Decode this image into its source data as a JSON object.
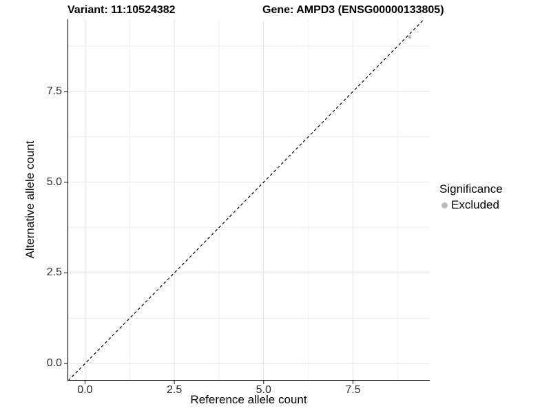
{
  "chart_data": {
    "type": "scatter",
    "title_left": "Variant: 11:10524382",
    "title_right": "Gene: AMPD3 (ENSG00000133805)",
    "xlabel": "Reference allele count",
    "ylabel": "Alternative allele count",
    "xlim": [
      -0.49,
      9.65
    ],
    "ylim": [
      -0.47,
      9.49
    ],
    "x_ticks": [
      0.0,
      2.5,
      5.0,
      7.5
    ],
    "x_tick_labels": [
      "0.0",
      "2.5",
      "5.0",
      "7.5"
    ],
    "y_ticks": [
      0.0,
      2.5,
      5.0,
      7.5
    ],
    "y_tick_labels": [
      "0.0",
      "2.5",
      "5.0",
      "7.5"
    ],
    "x_minor_ticks": [
      1.25,
      3.75,
      6.25,
      8.75
    ],
    "y_minor_ticks": [
      1.25,
      3.75,
      6.25,
      8.75
    ],
    "grid": true,
    "reference_line": {
      "kind": "identity",
      "style": "dashed",
      "color": "#000000"
    },
    "series": [
      {
        "name": "Excluded",
        "color": "#bdbdbd",
        "points": [
          {
            "x": 9.09,
            "y": 9.0
          }
        ]
      }
    ],
    "legend": {
      "title": "Significance",
      "position": "right",
      "entries": [
        {
          "label": "Excluded",
          "color": "#bdbdbd"
        }
      ]
    },
    "colors": {
      "background": "#ffffff",
      "grid_major": "#e4e4e4",
      "grid_minor": "#f1f1f1",
      "axis_line": "#000000",
      "tick_mark": "#222222",
      "tick_text": "#2b2b2b"
    }
  }
}
